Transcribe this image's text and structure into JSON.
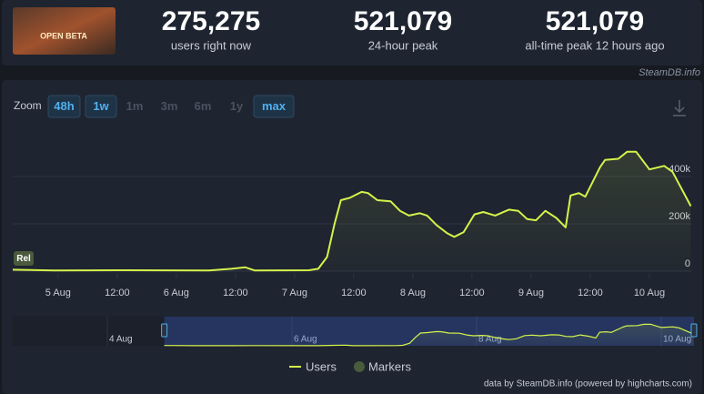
{
  "header": {
    "thumbnail_text": "OPEN BETA",
    "stats": [
      {
        "value": "275,275",
        "label": "users right now"
      },
      {
        "value": "521,079",
        "label": "24-hour peak"
      },
      {
        "value": "521,079",
        "label": "all-time peak 12 hours ago"
      }
    ],
    "source": "SteamDB.info"
  },
  "zoom": {
    "label": "Zoom",
    "buttons": [
      {
        "label": "48h",
        "active": true
      },
      {
        "label": "1w",
        "active": true
      },
      {
        "label": "1m",
        "active": false
      },
      {
        "label": "3m",
        "active": false
      },
      {
        "label": "6m",
        "active": false
      },
      {
        "label": "1y",
        "active": false
      },
      {
        "label": "max",
        "active": true
      }
    ]
  },
  "chart_data": {
    "type": "line",
    "annotations": [
      "Rel"
    ],
    "x": [
      -9.2,
      -0.7,
      14,
      30.6,
      35.2,
      38,
      39.9,
      50.9,
      52.8,
      54.6,
      56.1,
      57.4,
      59.2,
      61.6,
      62.9,
      64.8,
      67.5,
      69.4,
      71.2,
      73.4,
      74.9,
      76.8,
      79,
      80.4,
      82.3,
      84.5,
      86.3,
      88.7,
      91.5,
      93.4,
      95.2,
      97,
      98.9,
      101.1,
      103,
      104,
      105.7,
      107,
      110,
      111,
      113.7,
      115.5,
      117.3,
      120,
      123,
      124.7,
      128.4
    ],
    "series": [
      {
        "name": "Users",
        "color": "#d4f34b",
        "values": [
          6000,
          3000,
          4000,
          3000,
          10000,
          16000,
          3000,
          4000,
          10000,
          60000,
          200000,
          300000,
          310000,
          335000,
          330000,
          300000,
          295000,
          255000,
          235000,
          245000,
          235000,
          195000,
          160000,
          145000,
          165000,
          240000,
          250000,
          235000,
          260000,
          255000,
          220000,
          215000,
          255000,
          225000,
          185000,
          320000,
          330000,
          315000,
          440000,
          470000,
          475000,
          505000,
          505000,
          430000,
          445000,
          420000,
          275000
        ]
      }
    ],
    "markers_legend": {
      "name": "Markers",
      "color": "#4a5a3c"
    },
    "xlim": [
      -9.2,
      128.5
    ],
    "xticks": [
      {
        "value": 0,
        "label": "5 Aug"
      },
      {
        "value": 12,
        "label": "12:00"
      },
      {
        "value": 24,
        "label": "6 Aug"
      },
      {
        "value": 36,
        "label": "12:00"
      },
      {
        "value": 48,
        "label": "7 Aug"
      },
      {
        "value": 60,
        "label": "12:00"
      },
      {
        "value": 72,
        "label": "8 Aug"
      },
      {
        "value": 84,
        "label": "12:00"
      },
      {
        "value": 96,
        "label": "9 Aug"
      },
      {
        "value": 108,
        "label": "12:00"
      },
      {
        "value": 120,
        "label": "10 Aug"
      }
    ],
    "ylim": [
      0,
      600000
    ],
    "yticks": [
      {
        "value": 0,
        "label": "0"
      },
      {
        "value": 200000,
        "label": "200k"
      },
      {
        "value": 400000,
        "label": "400k"
      }
    ],
    "grid": true,
    "navigator": {
      "xlim": [
        -48.6,
        127.8
      ],
      "xticks": [
        {
          "value": -24,
          "label": "4 Aug"
        },
        {
          "value": 24,
          "label": "6 Aug"
        },
        {
          "value": 72,
          "label": "8 Aug"
        },
        {
          "value": 120,
          "label": "10 Aug"
        }
      ]
    },
    "credit": "data by SteamDB.info (powered by highcharts.com)"
  }
}
